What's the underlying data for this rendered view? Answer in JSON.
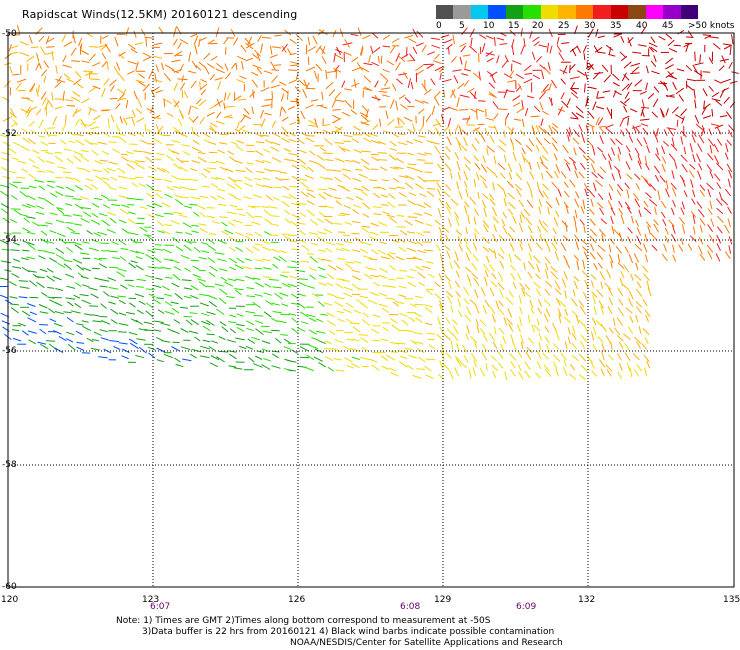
{
  "header": {
    "title": "Rapidscat Winds(12.5KM) 20160121 descending"
  },
  "legend": {
    "colors": [
      "#505050",
      "#9a9a9a",
      "#00c8f0",
      "#0050ff",
      "#14a014",
      "#28e000",
      "#f0dc00",
      "#ffb400",
      "#ff7800",
      "#f01e1e",
      "#c80000",
      "#8c4614",
      "#ff00ff",
      "#9600c8",
      "#40007a"
    ],
    "labels": [
      "0",
      "5",
      "10",
      "15",
      "20",
      "25",
      "30",
      "35",
      "40",
      "45",
      ">50 knots"
    ]
  },
  "axes": {
    "lon_labels": [
      "120",
      "123",
      "126",
      "129",
      "132",
      "135"
    ],
    "lat_labels": [
      "-50",
      "-52",
      "-54",
      "-56",
      "-58",
      "-60"
    ],
    "time_labels": [
      "6:07",
      "6:08",
      "6:09"
    ]
  },
  "notes": {
    "line1": "Note: 1) Times are GMT 2)Times along bottom correspond to measurement at -50S",
    "line2": "3)Data buffer is 22 hrs from 20160121 4) Black wind barbs indicate possible contamination",
    "line3": "NOAA/NESDIS/Center for Satellite Applications and Research"
  }
}
